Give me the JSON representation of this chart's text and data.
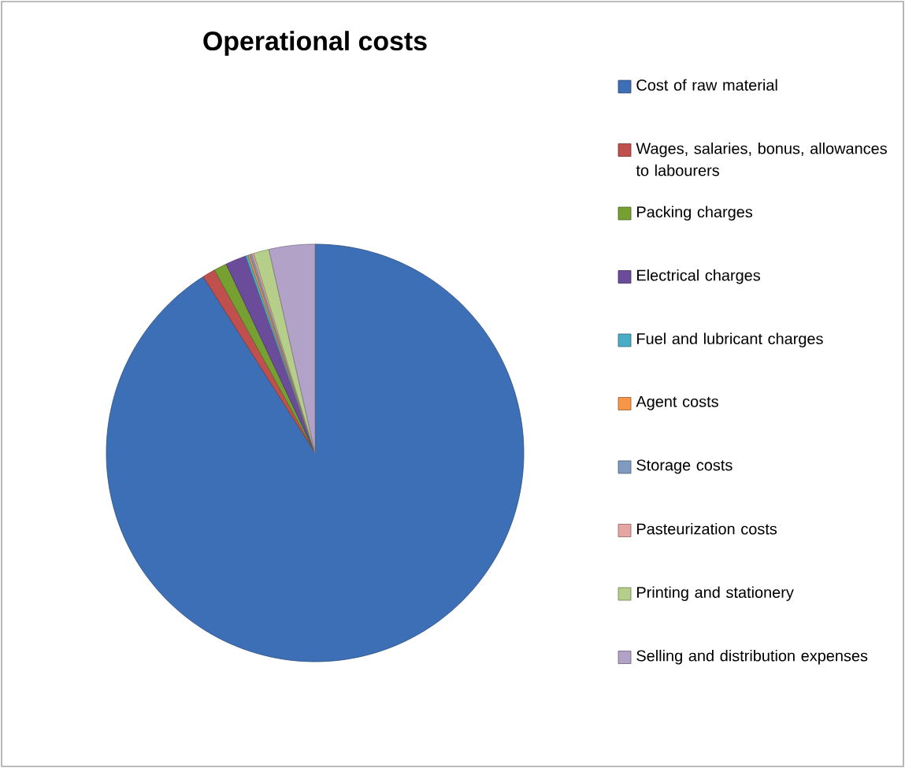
{
  "chart_data": {
    "type": "pie",
    "title": "Operational costs",
    "categories": [
      "Cost of raw material",
      "Wages, salaries, bonus, allowances to labourers",
      "Packing charges",
      "Electrical charges",
      "Fuel and lubricant charges",
      "Agent costs",
      "Storage costs",
      "Pasteurization costs",
      "Printing and stationery",
      "Selling and distribution expenses"
    ],
    "values": [
      91.0,
      1.0,
      1.0,
      1.6,
      0.2,
      0.15,
      0.15,
      0.15,
      1.2,
      3.55
    ],
    "colors": [
      "#3c6fb5",
      "#c0504d",
      "#77a033",
      "#6b4c9a",
      "#4bacc6",
      "#f79646",
      "#7f9cc0",
      "#e6a5a3",
      "#b5cf8a",
      "#b3a2c7"
    ],
    "legend": "right"
  }
}
